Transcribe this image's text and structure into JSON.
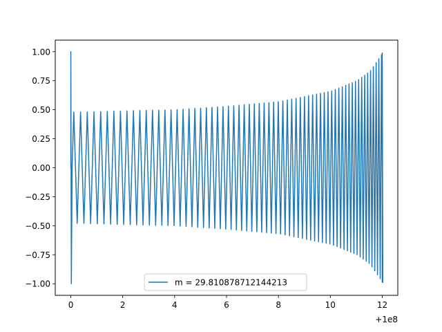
{
  "chart_data": {
    "type": "line",
    "title": "",
    "xlabel": "",
    "ylabel": "",
    "x_offset_label": "+1e8",
    "xlim": [
      -0.6,
      12.6
    ],
    "ylim": [
      -1.1,
      1.1
    ],
    "x_ticks": [
      {
        "value": 0,
        "label": "0"
      },
      {
        "value": 2,
        "label": "2"
      },
      {
        "value": 4,
        "label": "4"
      },
      {
        "value": 6,
        "label": "6"
      },
      {
        "value": 8,
        "label": "8"
      },
      {
        "value": 10,
        "label": "10"
      },
      {
        "value": 12,
        "label": "12"
      }
    ],
    "y_ticks": [
      {
        "value": 1.0,
        "label": "1.00"
      },
      {
        "value": 0.75,
        "label": "0.75"
      },
      {
        "value": 0.5,
        "label": "0.50"
      },
      {
        "value": 0.25,
        "label": "0.25"
      },
      {
        "value": 0.0,
        "label": "0.00"
      },
      {
        "value": -0.25,
        "label": "−0.25"
      },
      {
        "value": -0.5,
        "label": "−0.50"
      },
      {
        "value": -0.75,
        "label": "−0.75"
      },
      {
        "value": -1.0,
        "label": "−1.00"
      }
    ],
    "grid": false,
    "legend_position": "lower-center",
    "series": [
      {
        "name": "m = 29.810878712144213",
        "color": "#1f77b4",
        "x_start": 0,
        "x_end": 12,
        "initial_peak": 1.0,
        "amplitude_envelope": [
          {
            "x": 0.5,
            "y": 0.48
          },
          {
            "x": 2,
            "y": 0.49
          },
          {
            "x": 4,
            "y": 0.5
          },
          {
            "x": 6,
            "y": 0.53
          },
          {
            "x": 8,
            "y": 0.57
          },
          {
            "x": 10,
            "y": 0.66
          },
          {
            "x": 11,
            "y": 0.75
          },
          {
            "x": 11.5,
            "y": 0.83
          },
          {
            "x": 12,
            "y": 0.99
          }
        ]
      }
    ]
  }
}
